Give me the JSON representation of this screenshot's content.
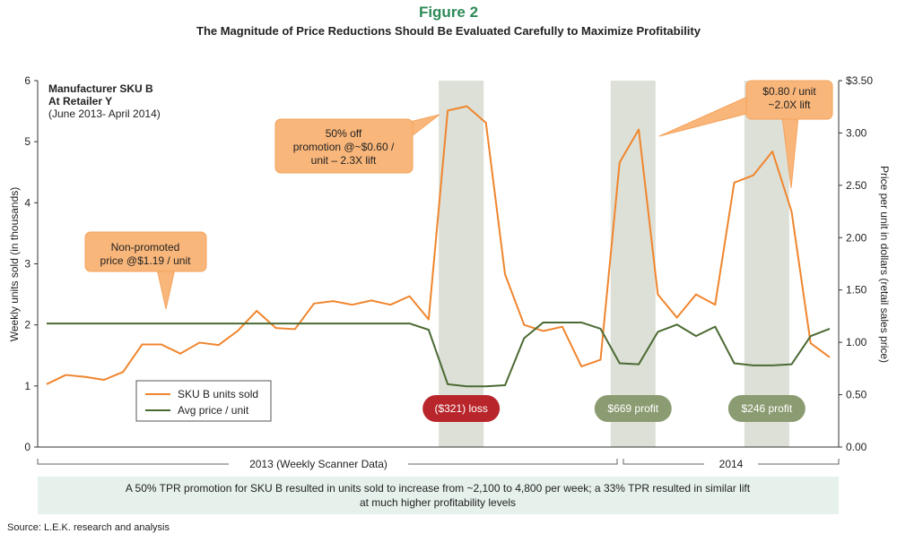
{
  "chart_data": {
    "type": "line",
    "title": "Figure 2",
    "subtitle": "The Magnitude of Price Reductions Should Be Evaluated Carefully to Maximize Profitability",
    "ylabel": "Weekly units sold (in thousands)",
    "y2label": "Price per unit in dollars (retail sales price)",
    "annotation": [
      "Manufacturer SKU B",
      "At Retailer Y",
      "(June 2013- April 2014)"
    ],
    "callouts": [
      [
        "Non-promoted",
        "price @$1.19 / unit"
      ],
      [
        "50% off",
        "promotion @~$0.60 /",
        "unit – 2.3X lift"
      ],
      [
        "$0.80 / unit",
        "~2.0X lift"
      ]
    ],
    "promotions": [
      {
        "start": 21,
        "label": "($321) loss",
        "color": "#b8262c"
      },
      {
        "start": 30,
        "label": "$669 profit",
        "color": "#8c9c72"
      },
      {
        "start": 37,
        "label": "$246 profit",
        "color": "#8c9c72"
      }
    ],
    "periods": [
      "2013 (Weekly Scanner Data)",
      "2014"
    ],
    "footnote": [
      "A 50% TPR promotion for SKU B resulted in units sold to increase from ~2,100 to  4,800 per week; a 33% TPR resulted in similar lift",
      "at much higher profitability levels"
    ],
    "source": "Source: L.E.K. research and analysis",
    "categories": [
      null,
      null,
      null,
      null,
      null,
      null,
      null,
      null,
      null,
      null,
      null,
      null,
      null,
      null,
      null,
      null,
      null,
      null,
      null,
      null,
      null,
      null,
      null,
      null,
      null,
      null,
      null,
      null,
      null,
      null,
      null,
      null,
      null,
      null,
      null,
      null,
      null,
      null,
      null,
      null,
      null,
      null
    ],
    "series": [
      {
        "name": "SKU B units sold",
        "color": "#f0852d",
        "values": [
          1.03,
          1.18,
          1.15,
          1.1,
          1.23,
          1.68,
          1.68,
          1.53,
          1.71,
          1.67,
          1.9,
          2.23,
          1.95,
          1.93,
          2.35,
          2.39,
          2.33,
          2.4,
          2.33,
          2.47,
          2.09,
          5.51,
          5.58,
          5.31,
          2.83,
          2.0,
          1.9,
          1.97,
          1.32,
          1.43,
          4.66,
          5.2,
          2.5,
          2.12,
          2.5,
          2.33,
          4.33,
          4.45,
          4.84,
          3.86,
          1.7,
          1.47
        ]
      },
      {
        "name": "Avg price / unit",
        "color": "#4b6a33",
        "axis": "y2",
        "values": [
          1.18,
          1.18,
          1.18,
          1.18,
          1.18,
          1.18,
          1.18,
          1.18,
          1.18,
          1.18,
          1.18,
          1.18,
          1.18,
          1.18,
          1.18,
          1.18,
          1.18,
          1.18,
          1.18,
          1.18,
          1.12,
          0.6,
          0.58,
          0.58,
          0.59,
          1.04,
          1.19,
          1.19,
          1.19,
          1.13,
          0.8,
          0.79,
          1.1,
          1.17,
          1.06,
          1.15,
          0.8,
          0.78,
          0.78,
          0.79,
          1.06,
          1.13
        ]
      }
    ],
    "ylim": [
      0,
      6
    ],
    "yticks": [
      0,
      1,
      2,
      3,
      4,
      5,
      6
    ],
    "y2lim": [
      0,
      3.5
    ],
    "y2ticks": [
      {
        "value": 0,
        "label": "0.00"
      },
      {
        "value": 0.5,
        "label": "0.50"
      },
      {
        "value": 1,
        "label": "1.00"
      },
      {
        "value": 1.5,
        "label": "1.50"
      },
      {
        "value": 2,
        "label": "2.00"
      },
      {
        "value": 2.5,
        "label": "2.50"
      },
      {
        "value": 3,
        "label": "3.00"
      },
      {
        "value": 3.5,
        "label": "$3.50"
      }
    ]
  }
}
